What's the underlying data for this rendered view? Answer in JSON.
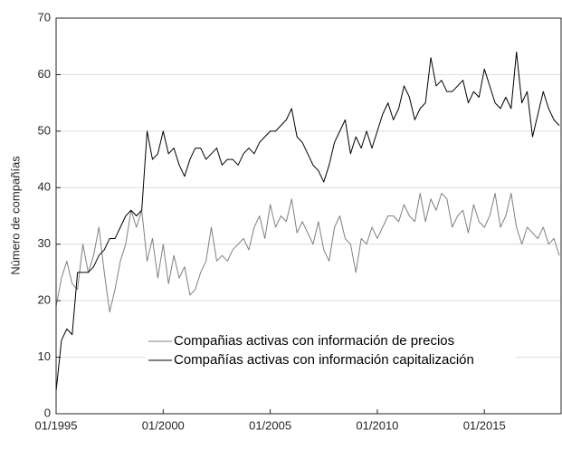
{
  "chart_data": {
    "type": "line",
    "y_label": "Número de compañías",
    "x": [
      "1995-01",
      "1995-04",
      "1995-07",
      "1995-10",
      "1996-01",
      "1996-04",
      "1996-07",
      "1996-10",
      "1997-01",
      "1997-04",
      "1997-07",
      "1997-10",
      "1998-01",
      "1998-04",
      "1998-07",
      "1998-10",
      "1999-01",
      "1999-04",
      "1999-07",
      "1999-10",
      "2000-01",
      "2000-04",
      "2000-07",
      "2000-10",
      "2001-01",
      "2001-04",
      "2001-07",
      "2001-10",
      "2002-01",
      "2002-04",
      "2002-07",
      "2002-10",
      "2003-01",
      "2003-04",
      "2003-07",
      "2003-10",
      "2004-01",
      "2004-04",
      "2004-07",
      "2004-10",
      "2005-01",
      "2005-04",
      "2005-07",
      "2005-10",
      "2006-01",
      "2006-04",
      "2006-07",
      "2006-10",
      "2007-01",
      "2007-04",
      "2007-07",
      "2007-10",
      "2008-01",
      "2008-04",
      "2008-07",
      "2008-10",
      "2009-01",
      "2009-04",
      "2009-07",
      "2009-10",
      "2010-01",
      "2010-04",
      "2010-07",
      "2010-10",
      "2011-01",
      "2011-04",
      "2011-07",
      "2011-10",
      "2012-01",
      "2012-04",
      "2012-07",
      "2012-10",
      "2013-01",
      "2013-04",
      "2013-07",
      "2013-10",
      "2014-01",
      "2014-04",
      "2014-07",
      "2014-10",
      "2015-01",
      "2015-04",
      "2015-07",
      "2015-10",
      "2016-01",
      "2016-04",
      "2016-07",
      "2016-10",
      "2017-01",
      "2017-04",
      "2017-07",
      "2017-10",
      "2018-01",
      "2018-04",
      "2018-07"
    ],
    "series": [
      {
        "name": "Compañias activas con información de precios",
        "color": "#808080",
        "values": [
          19,
          24,
          27,
          23,
          22,
          30,
          25,
          28,
          33,
          25,
          18,
          22,
          27,
          30,
          36,
          33,
          36,
          27,
          31,
          24,
          30,
          23,
          28,
          24,
          26,
          21,
          22,
          25,
          27,
          33,
          27,
          28,
          27,
          29,
          30,
          31,
          29,
          33,
          35,
          31,
          37,
          33,
          35,
          34,
          38,
          32,
          34,
          32,
          30,
          34,
          29,
          27,
          33,
          35,
          31,
          30,
          25,
          31,
          30,
          33,
          31,
          33,
          35,
          35,
          34,
          37,
          35,
          34,
          39,
          34,
          38,
          36,
          39,
          38,
          33,
          35,
          36,
          32,
          37,
          34,
          33,
          35,
          39,
          33,
          35,
          39,
          33,
          30,
          33,
          32,
          31,
          33,
          30,
          31,
          28
        ]
      },
      {
        "name": "Compañías activas con información capitalización",
        "color": "#000000",
        "values": [
          4,
          13,
          15,
          14,
          25,
          25,
          25,
          26,
          28,
          29,
          31,
          31,
          33,
          35,
          36,
          35,
          36,
          50,
          45,
          46,
          50,
          46,
          47,
          44,
          42,
          45,
          47,
          47,
          45,
          46,
          47,
          44,
          45,
          45,
          44,
          46,
          47,
          46,
          48,
          49,
          50,
          50,
          51,
          52,
          54,
          49,
          48,
          46,
          44,
          43,
          41,
          44,
          48,
          50,
          52,
          46,
          49,
          47,
          50,
          47,
          50,
          53,
          55,
          52,
          54,
          58,
          56,
          52,
          54,
          55,
          63,
          58,
          59,
          57,
          57,
          58,
          59,
          55,
          57,
          56,
          61,
          58,
          55,
          54,
          56,
          54,
          64,
          55,
          57,
          49,
          53,
          57,
          54,
          52,
          51
        ]
      }
    ],
    "xlim": [
      "1995-01",
      "2018-08"
    ],
    "xticks": [
      {
        "value": "1995-01",
        "label": "01/1995"
      },
      {
        "value": "2000-01",
        "label": "01/2000"
      },
      {
        "value": "2005-01",
        "label": "01/2005"
      },
      {
        "value": "2010-01",
        "label": "01/2010"
      },
      {
        "value": "2015-01",
        "label": "01/2015"
      }
    ],
    "ylim": [
      0,
      70
    ],
    "yticks": [
      0,
      10,
      20,
      30,
      40,
      50,
      60,
      70
    ],
    "grid": true
  }
}
